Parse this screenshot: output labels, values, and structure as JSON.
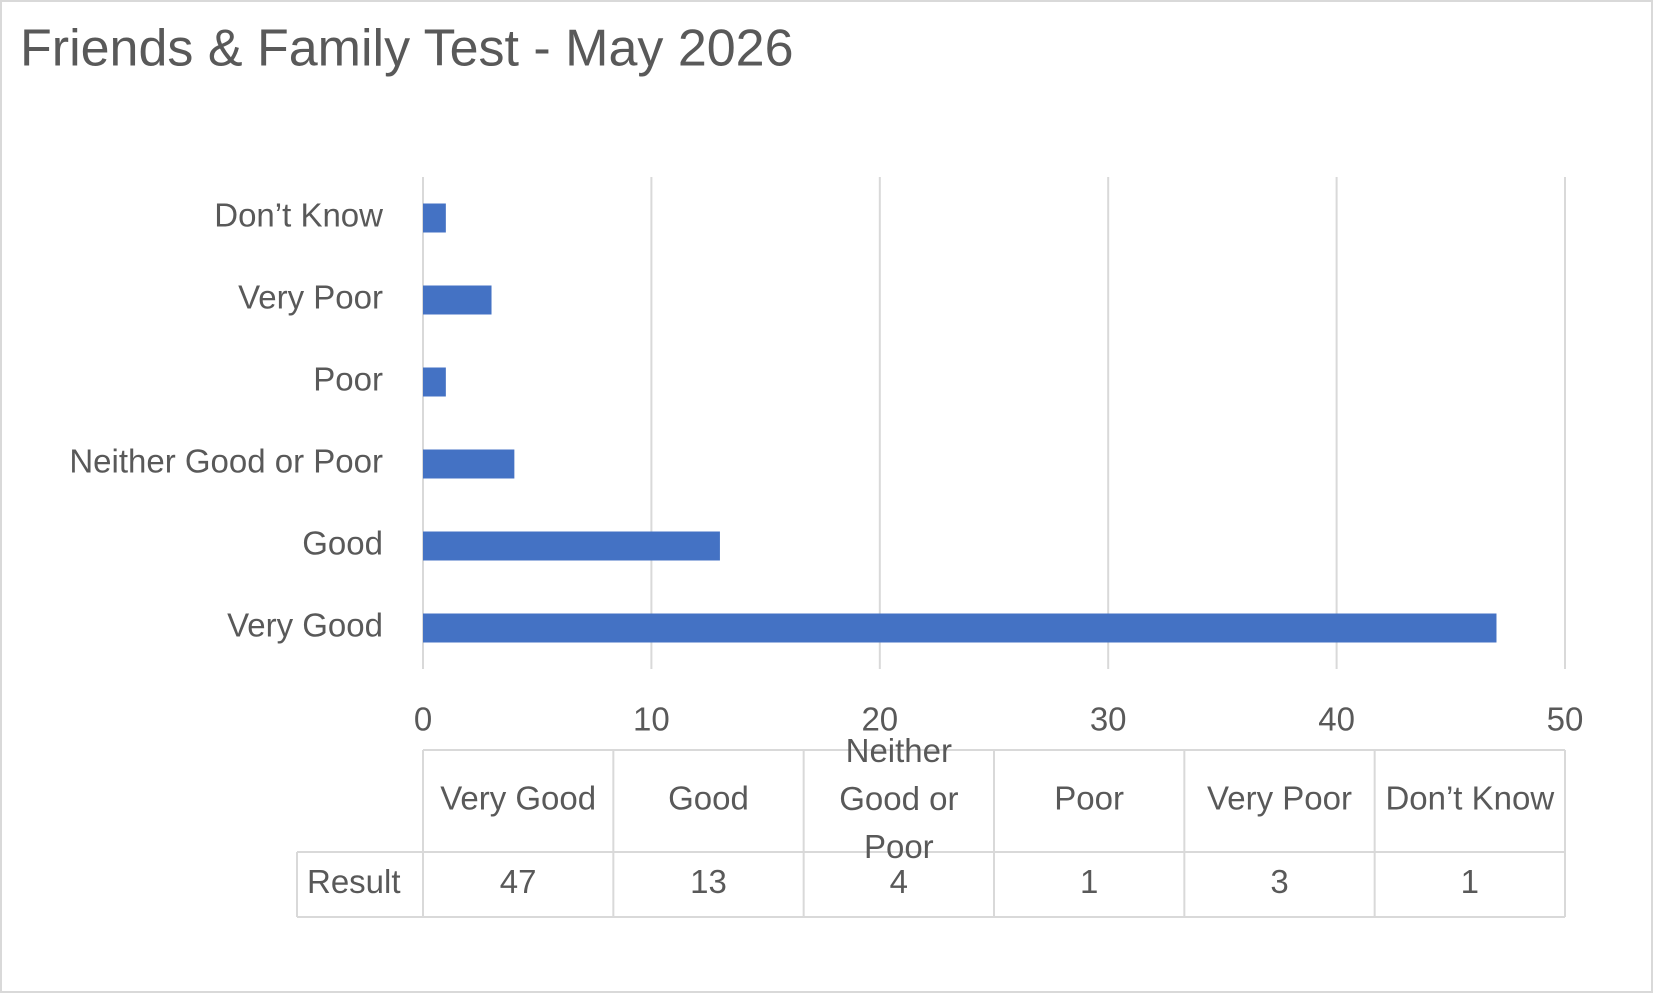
{
  "chart_data": {
    "type": "bar",
    "orientation": "horizontal",
    "title": "Friends & Family Test - May 2026",
    "categories": [
      "Very Good",
      "Good",
      "Neither Good or Poor",
      "Poor",
      "Very Poor",
      "Don’t Know"
    ],
    "series": [
      {
        "name": "Result",
        "color": "#4472c4",
        "values": [
          47,
          13,
          4,
          1,
          3,
          1
        ]
      }
    ],
    "xlim": [
      0,
      50
    ],
    "xticks": [
      0,
      10,
      20,
      30,
      40,
      50
    ],
    "grid": true,
    "data_table": true
  }
}
